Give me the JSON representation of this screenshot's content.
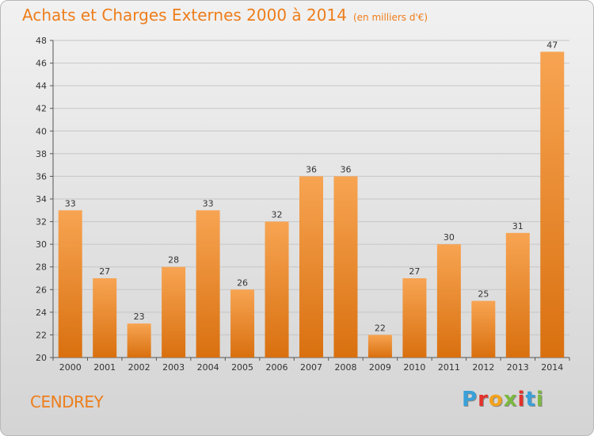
{
  "title": "Achats et Charges Externes 2000 à 2014",
  "subtitle": "(en milliers d'€)",
  "commune": "CENDREY",
  "logo": {
    "letters": [
      "P",
      "r",
      "o",
      "x",
      "i",
      "t",
      "i"
    ],
    "colors": [
      "#3aa0d8",
      "#e4322b",
      "#f3a21c",
      "#7bb841",
      "#e4322b",
      "#3aa0d8",
      "#7bb841"
    ]
  },
  "colors": {
    "accent": "#ee7d1a",
    "bar_top": "#f7a452",
    "bar_bottom": "#d9700f"
  },
  "chart_data": {
    "type": "bar",
    "categories": [
      "2000",
      "2001",
      "2002",
      "2003",
      "2004",
      "2005",
      "2006",
      "2007",
      "2008",
      "2009",
      "2010",
      "2011",
      "2012",
      "2013",
      "2014"
    ],
    "values": [
      33,
      27,
      23,
      28,
      33,
      26,
      32,
      36,
      36,
      22,
      27,
      30,
      25,
      31,
      47
    ],
    "data_labels": [
      "33",
      "27",
      "23",
      "28",
      "33",
      "26",
      "32",
      "36",
      "36",
      "22",
      "27",
      "30",
      "25",
      "31",
      "47"
    ],
    "ylim": [
      20,
      48
    ],
    "yticks": [
      "20",
      "22",
      "24",
      "26",
      "28",
      "30",
      "32",
      "34",
      "36",
      "38",
      "40",
      "42",
      "44",
      "46",
      "48"
    ],
    "grid": true,
    "legend": "none"
  }
}
